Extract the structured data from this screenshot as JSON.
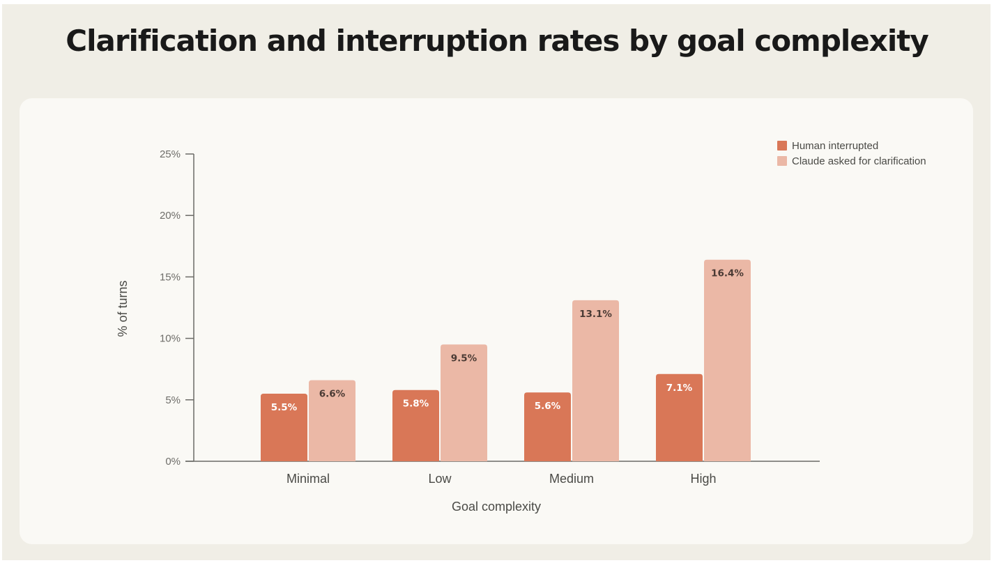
{
  "chart_data": {
    "type": "bar",
    "title": "Clarification and interruption rates by goal complexity",
    "xlabel": "Goal complexity",
    "ylabel": "% of turns",
    "categories": [
      "Minimal",
      "Low",
      "Medium",
      "High"
    ],
    "ylim": [
      0,
      25
    ],
    "yticks": [
      {
        "value": 0,
        "label": "0%"
      },
      {
        "value": 5,
        "label": "5%"
      },
      {
        "value": 10,
        "label": "10%"
      },
      {
        "value": 15,
        "label": "15%"
      },
      {
        "value": 20,
        "label": "20%"
      },
      {
        "value": 25,
        "label": "25%"
      }
    ],
    "series": [
      {
        "name": "Human interrupted",
        "color": "#d97757",
        "label_color": "#ffffff",
        "values": [
          5.5,
          5.8,
          5.6,
          7.1
        ],
        "labels": [
          "5.5%",
          "5.8%",
          "5.6%",
          "7.1%"
        ]
      },
      {
        "name": "Claude asked for clarification",
        "color": "#ebb8a6",
        "label_color": "#4a3a34",
        "values": [
          6.6,
          9.5,
          13.1,
          16.4
        ],
        "labels": [
          "6.6%",
          "9.5%",
          "13.1%",
          "16.4%"
        ]
      }
    ],
    "legend_position": "top-right"
  },
  "colors": {
    "page_background": "#f0eee6",
    "card_background": "#faf9f5",
    "axis": "#6b6a66"
  }
}
